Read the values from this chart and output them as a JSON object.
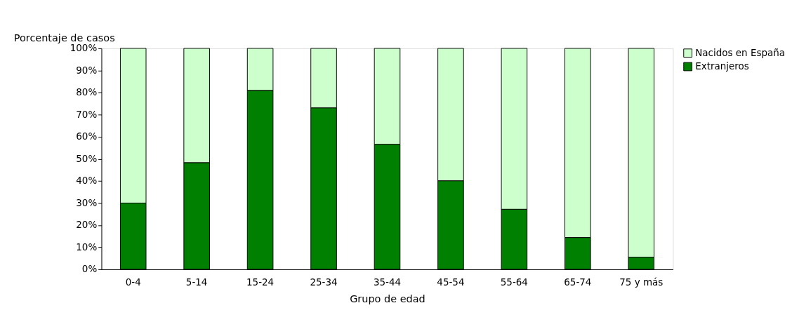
{
  "chart_data": {
    "type": "bar",
    "stacked": true,
    "ylabel": "Porcentaje de casos",
    "xlabel": "Grupo de edad",
    "categories": [
      "0-4",
      "5-14",
      "15-24",
      "25-34",
      "35-44",
      "45-54",
      "55-64",
      "65-74",
      "75 y más"
    ],
    "series": [
      {
        "name": "Extranjeros",
        "color": "#008000",
        "values": [
          30.0,
          48.3,
          81.0,
          73.1,
          56.6,
          40.1,
          27.2,
          14.4,
          5.5
        ]
      },
      {
        "name": "Nacidos en España",
        "color": "#ccffcc",
        "values": [
          70.0,
          51.7,
          19.0,
          26.9,
          43.4,
          59.9,
          72.8,
          85.6,
          94.5
        ]
      }
    ],
    "ylim": [
      0,
      100
    ],
    "yticks": [
      {
        "value": 0,
        "label": "0%"
      },
      {
        "value": 10,
        "label": "10%"
      },
      {
        "value": 20,
        "label": "20%"
      },
      {
        "value": 30,
        "label": "30%"
      },
      {
        "value": 40,
        "label": "40%"
      },
      {
        "value": 50,
        "label": "50%"
      },
      {
        "value": 60,
        "label": "60%"
      },
      {
        "value": 70,
        "label": "70%"
      },
      {
        "value": 80,
        "label": "80%"
      },
      {
        "value": 90,
        "label": "90%"
      },
      {
        "value": 100,
        "label": "100%"
      }
    ],
    "grid": false,
    "legend": "right"
  }
}
